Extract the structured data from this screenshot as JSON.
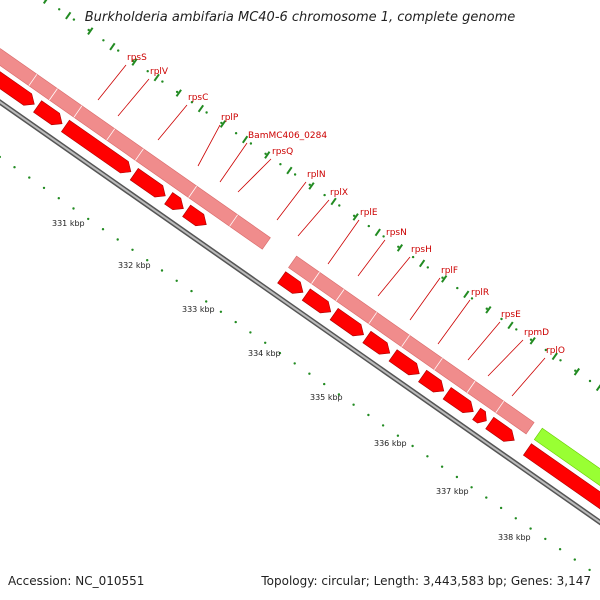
{
  "title": "Burkholderia ambifaria MC40-6 chromosome 1, complete genome",
  "accession": "Accession: NC_010551",
  "summary": "Topology: circular; Length: 3,443,583 bp; Genes: 3,147",
  "colors": {
    "cds_track": "#f08c8c",
    "gene_arrow": "#ff0000",
    "other_feature": "#99ff33",
    "label": "#cc0000",
    "backbone": "#999999",
    "tick": "#228b22"
  },
  "scale": {
    "unit": "kbp",
    "labels": [
      "331 kbp",
      "332 kbp",
      "333 kbp",
      "334 kbp",
      "335 kbp",
      "336 kbp",
      "337 kbp",
      "338 kbp"
    ]
  },
  "genes": [
    "rpsS",
    "rplV",
    "rpsC",
    "rplP",
    "BamMC406_0284",
    "rpsQ",
    "rplN",
    "rplX",
    "rplE",
    "rpsN",
    "rpsH",
    "rplF",
    "rplR",
    "rpsE",
    "rpmD",
    "rplO"
  ]
}
